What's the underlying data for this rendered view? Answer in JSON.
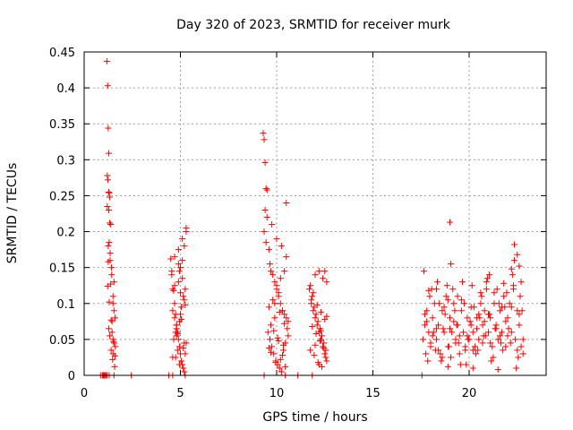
{
  "chart_data": {
    "type": "scatter",
    "title": "Day 320 of 2023, SRMTID for receiver murk",
    "xlabel": "GPS time / hours",
    "ylabel": "SRMTID / TECUs",
    "xlim": [
      0,
      24
    ],
    "ylim": [
      0,
      0.45
    ],
    "xticks": [
      0,
      5,
      10,
      15,
      20
    ],
    "yticks": [
      0,
      0.05,
      0.1,
      0.15,
      0.2,
      0.25,
      0.3,
      0.35,
      0.4,
      0.45
    ],
    "ytick_labels": [
      "0",
      "0.05",
      "0.1",
      "0.15",
      "0.2",
      "0.25",
      "0.3",
      "0.35",
      "0.4",
      "0.45"
    ],
    "grid": true,
    "marker": "+",
    "color": "#ff0000",
    "series": [
      {
        "name": "SRMTID",
        "x": [
          0.85,
          0.95,
          1.0,
          1.05,
          1.1,
          1.15,
          1.2,
          1.3,
          1.55,
          2.45,
          4.4,
          4.6,
          5.25,
          9.35,
          10.45,
          11.1,
          11.85,
          17.55,
          1.18,
          1.22,
          1.25,
          1.28,
          1.2,
          1.23,
          1.3,
          1.27,
          1.33,
          1.35,
          1.25,
          1.38,
          1.22,
          1.3,
          1.4,
          1.45,
          1.5,
          1.52,
          1.55,
          1.6,
          1.48,
          1.58,
          1.62,
          1.45,
          1.5,
          1.55,
          1.42,
          1.35,
          1.3,
          1.25,
          1.2,
          1.28,
          1.32,
          1.38,
          1.43,
          1.5,
          1.55,
          1.6,
          1.28,
          1.33,
          1.4,
          1.5,
          4.5,
          4.55,
          4.6,
          4.7,
          4.75,
          4.8,
          4.85,
          4.9,
          4.95,
          5.0,
          5.05,
          5.1,
          5.15,
          5.2,
          5.25,
          5.3,
          4.6,
          4.7,
          4.8,
          4.9,
          5.0,
          5.1,
          5.2,
          5.3,
          4.65,
          4.75,
          4.85,
          4.95,
          5.05,
          5.15,
          5.25,
          4.55,
          4.7,
          4.9,
          5.1,
          5.3,
          4.6,
          4.8,
          5.0,
          5.2,
          4.7,
          4.9,
          5.1,
          5.0,
          4.8,
          5.2,
          4.75,
          4.95,
          5.15,
          4.85,
          5.05,
          5.25,
          4.65,
          4.95,
          9.3,
          9.35,
          9.4,
          9.45,
          9.5,
          9.4,
          9.35,
          9.5,
          9.45,
          9.6,
          9.7,
          9.8,
          9.9,
          10.0,
          10.1,
          10.2,
          10.3,
          10.4,
          10.5,
          10.6,
          9.55,
          9.65,
          9.75,
          9.85,
          9.95,
          10.05,
          10.15,
          10.25,
          10.35,
          10.45,
          10.55,
          9.6,
          9.8,
          10.0,
          10.2,
          10.4,
          10.6,
          9.7,
          9.9,
          10.1,
          10.3,
          10.5,
          9.75,
          10.0,
          10.25,
          10.5,
          9.65,
          9.9,
          10.15,
          10.4,
          9.85,
          10.05,
          10.35,
          9.7,
          10.2,
          10.45,
          9.95,
          10.3,
          9.6,
          10.1,
          11.7,
          11.8,
          11.9,
          12.0,
          12.1,
          12.2,
          12.3,
          12.4,
          12.5,
          12.6,
          11.75,
          11.85,
          11.95,
          12.05,
          12.15,
          12.25,
          12.35,
          12.45,
          12.55,
          11.8,
          12.0,
          12.2,
          12.4,
          12.6,
          11.9,
          12.1,
          12.3,
          12.5,
          11.85,
          12.05,
          12.25,
          12.45,
          11.95,
          12.15,
          12.35,
          12.55,
          12.0,
          12.3,
          12.6,
          11.75,
          12.2,
          12.5,
          17.6,
          17.7,
          17.8,
          17.9,
          18.0,
          18.1,
          18.2,
          18.3,
          18.4,
          18.5,
          18.6,
          18.7,
          18.8,
          18.9,
          19.0,
          19.1,
          19.2,
          19.3,
          19.4,
          19.5,
          19.6,
          19.7,
          19.8,
          19.9,
          20.0,
          20.1,
          20.2,
          20.3,
          20.4,
          20.5,
          20.6,
          20.7,
          20.8,
          20.9,
          21.0,
          21.1,
          21.2,
          21.3,
          21.4,
          21.5,
          21.6,
          21.7,
          21.8,
          21.9,
          22.0,
          22.1,
          22.2,
          22.3,
          22.4,
          22.5,
          22.6,
          22.7,
          22.8,
          17.65,
          17.85,
          18.05,
          18.25,
          18.45,
          18.65,
          18.85,
          19.05,
          19.25,
          19.45,
          19.65,
          19.85,
          20.05,
          20.25,
          20.45,
          20.65,
          20.85,
          21.05,
          21.25,
          21.45,
          21.65,
          21.85,
          22.05,
          22.25,
          22.45,
          22.65,
          17.75,
          17.95,
          18.15,
          18.35,
          18.55,
          18.75,
          18.95,
          19.15,
          19.35,
          19.55,
          19.75,
          19.95,
          20.15,
          20.35,
          20.55,
          20.75,
          20.95,
          21.15,
          21.35,
          21.55,
          21.75,
          21.95,
          22.15,
          22.35,
          22.55,
          22.75,
          17.7,
          18.0,
          18.3,
          18.6,
          18.9,
          19.2,
          19.5,
          19.8,
          20.1,
          20.4,
          20.7,
          21.0,
          21.3,
          21.6,
          21.9,
          22.2,
          22.5,
          22.8,
          17.8,
          18.1,
          18.4,
          18.7,
          19.0,
          19.3,
          19.6,
          19.9,
          20.2,
          20.5,
          20.8,
          21.1,
          21.4,
          21.7,
          22.0,
          22.3,
          22.6,
          19.0,
          19.05,
          22.35,
          22.5,
          22.6,
          22.2,
          21.05,
          20.9,
          18.3,
          17.9,
          19.4,
          20.6,
          21.8,
          22.7,
          18.9,
          20.2,
          21.5
        ],
        "y": [
          0,
          0,
          0,
          0,
          0,
          0,
          0,
          0,
          0,
          0,
          0,
          0,
          0,
          0,
          0,
          0,
          0,
          0,
          0.437,
          0.403,
          0.344,
          0.309,
          0.278,
          0.272,
          0.254,
          0.255,
          0.212,
          0.16,
          0.158,
          0.127,
          0.124,
          0.102,
          0.077,
          0.075,
          0.05,
          0.047,
          0.045,
          0.027,
          0.022,
          0.012,
          0.04,
          0.06,
          0.1,
          0.13,
          0.15,
          0.17,
          0.185,
          0.18,
          0.235,
          0.23,
          0.248,
          0.21,
          0.14,
          0.11,
          0.09,
          0.08,
          0.065,
          0.055,
          0.035,
          0.03,
          0.162,
          0.145,
          0.12,
          0.1,
          0.085,
          0.07,
          0.06,
          0.05,
          0.04,
          0.03,
          0.02,
          0.015,
          0.01,
          0.005,
          0.03,
          0.045,
          0.09,
          0.08,
          0.07,
          0.13,
          0.15,
          0.16,
          0.18,
          0.2,
          0.05,
          0.06,
          0.035,
          0.075,
          0.095,
          0.11,
          0.12,
          0.14,
          0.165,
          0.175,
          0.19,
          0.205,
          0.025,
          0.055,
          0.085,
          0.105,
          0.125,
          0.155,
          0.135,
          0.115,
          0.065,
          0.045,
          0.025,
          0.015,
          0.038,
          0.058,
          0.078,
          0.098,
          0.118,
          0.145,
          0.337,
          0.328,
          0.296,
          0.26,
          0.258,
          0.23,
          0.2,
          0.22,
          0.185,
          0.175,
          0.145,
          0.14,
          0.13,
          0.12,
          0.11,
          0.1,
          0.09,
          0.085,
          0.08,
          0.075,
          0.06,
          0.05,
          0.04,
          0.03,
          0.02,
          0.015,
          0.01,
          0.005,
          0.035,
          0.045,
          0.065,
          0.095,
          0.105,
          0.125,
          0.135,
          0.145,
          0.055,
          0.07,
          0.08,
          0.115,
          0.09,
          0.24,
          0.21,
          0.19,
          0.18,
          0.165,
          0.155,
          0.1,
          0.088,
          0.072,
          0.062,
          0.052,
          0.042,
          0.032,
          0.022,
          0.012,
          0.018,
          0.028,
          0.038,
          0.048,
          0.12,
          0.1,
          0.09,
          0.08,
          0.07,
          0.06,
          0.05,
          0.04,
          0.03,
          0.02,
          0.125,
          0.11,
          0.095,
          0.085,
          0.075,
          0.065,
          0.055,
          0.045,
          0.035,
          0.105,
          0.14,
          0.145,
          0.135,
          0.13,
          0.115,
          0.098,
          0.088,
          0.078,
          0.068,
          0.058,
          0.048,
          0.038,
          0.028,
          0.018,
          0.012,
          0.025,
          0.042,
          0.062,
          0.082,
          0.035,
          0.015,
          0.145,
          0.05,
          0.07,
          0.09,
          0.06,
          0.04,
          0.08,
          0.1,
          0.05,
          0.07,
          0.03,
          0.09,
          0.06,
          0.11,
          0.04,
          0.08,
          0.06,
          0.1,
          0.05,
          0.07,
          0.03,
          0.09,
          0.06,
          0.04,
          0.08,
          0.05,
          0.07,
          0.06,
          0.04,
          0.08,
          0.05,
          0.1,
          0.07,
          0.09,
          0.12,
          0.06,
          0.08,
          0.04,
          0.1,
          0.07,
          0.05,
          0.09,
          0.06,
          0.11,
          0.04,
          0.08,
          0.1,
          0.06,
          0.12,
          0.05,
          0.09,
          0.07,
          0.04,
          0.03,
          0.145,
          0.02,
          0.12,
          0.035,
          0.1,
          0.065,
          0.125,
          0.025,
          0.09,
          0.045,
          0.13,
          0.015,
          0.075,
          0.095,
          0.035,
          0.11,
          0.055,
          0.085,
          0.025,
          0.12,
          0.045,
          0.095,
          0.065,
          0.14,
          0.01,
          0.11,
          0.03,
          0.11,
          0.06,
          0.13,
          0.02,
          0.085,
          0.04,
          0.12,
          0.07,
          0.015,
          0.1,
          0.05,
          0.125,
          0.03,
          0.08,
          0.055,
          0.135,
          0.02,
          0.065,
          0.1,
          0.035,
          0.115,
          0.045,
          0.16,
          0.025,
          0.09,
          0.085,
          0.045,
          0.065,
          0.025,
          0.105,
          0.075,
          0.055,
          0.035,
          0.095,
          0.065,
          0.045,
          0.085,
          0.115,
          0.055,
          0.075,
          0.095,
          0.035,
          0.05,
          0.075,
          0.055,
          0.035,
          0.095,
          0.065,
          0.045,
          0.105,
          0.055,
          0.035,
          0.085,
          0.075,
          0.045,
          0.065,
          0.095,
          0.055,
          0.125,
          0.085,
          0.213,
          0.155,
          0.182,
          0.168,
          0.152,
          0.148,
          0.14,
          0.13,
          0.12,
          0.118,
          0.11,
          0.115,
          0.128,
          0.13,
          0.012,
          0.01,
          0.008
        ]
      }
    ]
  }
}
